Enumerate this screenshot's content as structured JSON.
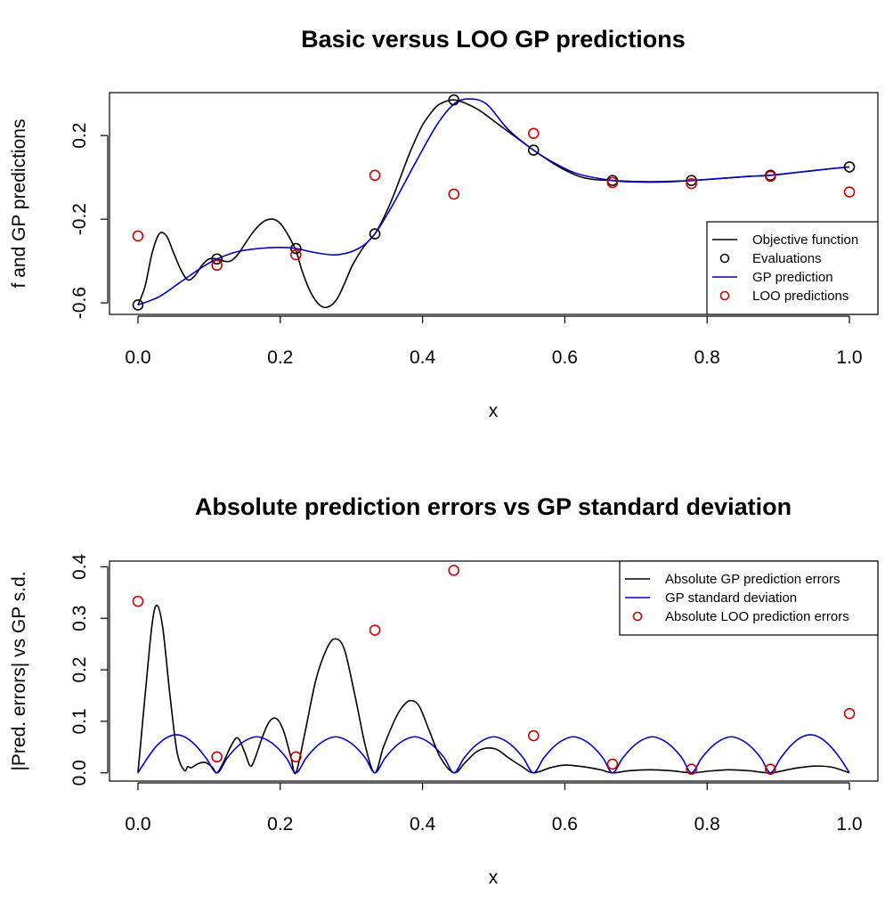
{
  "chart_data": [
    {
      "type": "line",
      "title": "Basic versus LOO GP predictions",
      "xlabel": "x",
      "ylabel": "f and GP predictions",
      "xlim": [
        -0.04,
        1.04
      ],
      "ylim": [
        -0.655,
        0.405
      ],
      "xticks": [
        0,
        0.2,
        0.4,
        0.6,
        0.8,
        1
      ],
      "xtick_labels": [
        "0.0",
        "0.2",
        "0.4",
        "0.6",
        "0.8",
        "1.0"
      ],
      "yticks": [
        -0.6,
        -0.2,
        0.2
      ],
      "ytick_labels": [
        "-0.6",
        "-0.2",
        "0.2"
      ],
      "grid": false,
      "legend_position": "bottom-right",
      "series": [
        {
          "name": "Objective function",
          "kind": "line",
          "color": "#000000",
          "x": [
            0,
            0.01,
            0.02,
            0.03,
            0.04,
            0.05,
            0.06,
            0.07,
            0.08,
            0.09,
            0.1,
            0.111,
            0.12,
            0.13,
            0.14,
            0.15,
            0.16,
            0.17,
            0.18,
            0.19,
            0.2,
            0.21,
            0.222,
            0.23,
            0.24,
            0.25,
            0.26,
            0.27,
            0.28,
            0.29,
            0.3,
            0.31,
            0.32,
            0.333,
            0.34,
            0.35,
            0.36,
            0.37,
            0.38,
            0.39,
            0.4,
            0.41,
            0.42,
            0.43,
            0.444,
            0.46,
            0.48,
            0.5,
            0.52,
            0.54,
            0.556,
            0.58,
            0.6,
            0.62,
            0.64,
            0.667,
            0.7,
            0.74,
            0.778,
            0.82,
            0.86,
            0.889,
            0.93,
            0.97,
            1.0
          ],
          "y": [
            -0.61,
            -0.52,
            -0.36,
            -0.27,
            -0.28,
            -0.36,
            -0.44,
            -0.49,
            -0.47,
            -0.42,
            -0.39,
            -0.39,
            -0.4,
            -0.4,
            -0.37,
            -0.32,
            -0.27,
            -0.23,
            -0.205,
            -0.2,
            -0.22,
            -0.27,
            -0.35,
            -0.44,
            -0.53,
            -0.59,
            -0.62,
            -0.615,
            -0.58,
            -0.51,
            -0.43,
            -0.37,
            -0.32,
            -0.27,
            -0.23,
            -0.16,
            -0.08,
            0.01,
            0.1,
            0.18,
            0.25,
            0.3,
            0.34,
            0.36,
            0.37,
            0.355,
            0.32,
            0.27,
            0.22,
            0.17,
            0.13,
            0.075,
            0.035,
            0.005,
            -0.01,
            -0.015,
            -0.02,
            -0.02,
            -0.015,
            -0.005,
            0.005,
            0.01,
            0.025,
            0.04,
            0.05
          ]
        },
        {
          "name": "Evaluations",
          "kind": "points",
          "color": "#000000",
          "x": [
            0,
            0.111,
            0.222,
            0.333,
            0.444,
            0.556,
            0.667,
            0.778,
            0.889,
            1.0
          ],
          "y": [
            -0.61,
            -0.39,
            -0.34,
            -0.27,
            0.37,
            0.13,
            -0.015,
            -0.015,
            0.01,
            0.05
          ]
        },
        {
          "name": "GP prediction",
          "kind": "line",
          "color": "#0000cc",
          "x": [
            0,
            0.03,
            0.06,
            0.09,
            0.111,
            0.14,
            0.17,
            0.2,
            0.222,
            0.25,
            0.28,
            0.31,
            0.333,
            0.36,
            0.39,
            0.42,
            0.444,
            0.465,
            0.49,
            0.52,
            0.556,
            0.59,
            0.62,
            0.667,
            0.7,
            0.74,
            0.778,
            0.82,
            0.86,
            0.889,
            0.93,
            0.97,
            1.0
          ],
          "y": [
            -0.61,
            -0.57,
            -0.5,
            -0.43,
            -0.39,
            -0.355,
            -0.34,
            -0.335,
            -0.34,
            -0.36,
            -0.37,
            -0.34,
            -0.27,
            -0.12,
            0.07,
            0.25,
            0.35,
            0.375,
            0.35,
            0.23,
            0.13,
            0.06,
            0.015,
            -0.015,
            -0.022,
            -0.022,
            -0.015,
            -0.005,
            0.005,
            0.01,
            0.025,
            0.04,
            0.05
          ]
        },
        {
          "name": "LOO predictions",
          "kind": "points",
          "color": "#cc0000",
          "x": [
            0,
            0.111,
            0.222,
            0.333,
            0.444,
            0.556,
            0.667,
            0.778,
            0.889,
            1.0
          ],
          "y": [
            -0.28,
            -0.42,
            -0.37,
            0.01,
            -0.08,
            0.21,
            -0.025,
            -0.03,
            0.005,
            -0.07
          ]
        }
      ]
    },
    {
      "type": "line",
      "title": "Absolute prediction errors vs GP standard deviation",
      "xlabel": "x",
      "ylabel": "|Pred. errors| vs GP s.d.",
      "xlim": [
        -0.04,
        1.04
      ],
      "ylim": [
        -0.016,
        0.411
      ],
      "xticks": [
        0,
        0.2,
        0.4,
        0.6,
        0.8,
        1
      ],
      "xtick_labels": [
        "0.0",
        "0.2",
        "0.4",
        "0.6",
        "0.8",
        "1.0"
      ],
      "yticks": [
        0,
        0.1,
        0.2,
        0.3,
        0.4
      ],
      "ytick_labels": [
        "0.0",
        "0.1",
        "0.2",
        "0.3",
        "0.4"
      ],
      "grid": false,
      "legend_position": "top-right",
      "series": [
        {
          "name": "Absolute GP prediction errors",
          "kind": "line",
          "color": "#000000",
          "x": [
            0,
            0.01,
            0.02,
            0.027,
            0.035,
            0.045,
            0.055,
            0.065,
            0.07,
            0.075,
            0.085,
            0.095,
            0.105,
            0.111,
            0.12,
            0.13,
            0.14,
            0.15,
            0.158,
            0.165,
            0.175,
            0.185,
            0.195,
            0.205,
            0.215,
            0.222,
            0.235,
            0.25,
            0.265,
            0.277,
            0.29,
            0.305,
            0.32,
            0.333,
            0.345,
            0.36,
            0.37,
            0.382,
            0.395,
            0.41,
            0.425,
            0.444,
            0.46,
            0.475,
            0.49,
            0.505,
            0.52,
            0.54,
            0.556,
            0.58,
            0.6,
            0.625,
            0.65,
            0.667,
            0.69,
            0.72,
            0.75,
            0.778,
            0.8,
            0.83,
            0.86,
            0.889,
            0.92,
            0.95,
            0.975,
            1.0
          ],
          "y": [
            0,
            0.15,
            0.29,
            0.325,
            0.28,
            0.15,
            0.04,
            0.005,
            0.012,
            0.01,
            0.018,
            0.02,
            0.01,
            0,
            0.02,
            0.05,
            0.068,
            0.04,
            0.013,
            0.03,
            0.07,
            0.1,
            0.105,
            0.08,
            0.03,
            0,
            0.08,
            0.18,
            0.24,
            0.26,
            0.24,
            0.15,
            0.05,
            0,
            0.05,
            0.1,
            0.125,
            0.14,
            0.13,
            0.08,
            0.03,
            0,
            0.02,
            0.04,
            0.048,
            0.045,
            0.03,
            0.012,
            0,
            0.01,
            0.015,
            0.012,
            0.006,
            0,
            0.004,
            0.006,
            0.004,
            0,
            0.003,
            0.006,
            0.004,
            0,
            0.008,
            0.013,
            0.011,
            0
          ]
        },
        {
          "name": "GP standard deviation",
          "kind": "line",
          "color": "#0000cc",
          "x": [
            0,
            0.013,
            0.026,
            0.04,
            0.054,
            0.068,
            0.082,
            0.096,
            0.111,
            0.125,
            0.139,
            0.153,
            0.167,
            0.181,
            0.195,
            0.209,
            0.222,
            0.236,
            0.25,
            0.264,
            0.278,
            0.292,
            0.306,
            0.32,
            0.333,
            0.347,
            0.361,
            0.375,
            0.389,
            0.403,
            0.417,
            0.431,
            0.444,
            0.458,
            0.472,
            0.486,
            0.5,
            0.514,
            0.528,
            0.542,
            0.556,
            0.57,
            0.584,
            0.598,
            0.612,
            0.626,
            0.64,
            0.654,
            0.667,
            0.681,
            0.695,
            0.709,
            0.723,
            0.737,
            0.751,
            0.765,
            0.778,
            0.792,
            0.806,
            0.82,
            0.834,
            0.848,
            0.862,
            0.876,
            0.889,
            0.903,
            0.917,
            0.931,
            0.945,
            0.959,
            0.973,
            0.987,
            1.0
          ],
          "y": [
            0,
            0.028,
            0.052,
            0.068,
            0.074,
            0.068,
            0.052,
            0.028,
            0,
            0.028,
            0.05,
            0.064,
            0.07,
            0.064,
            0.05,
            0.028,
            0,
            0.028,
            0.05,
            0.064,
            0.07,
            0.064,
            0.05,
            0.028,
            0,
            0.028,
            0.05,
            0.064,
            0.07,
            0.064,
            0.05,
            0.028,
            0,
            0.028,
            0.05,
            0.064,
            0.07,
            0.064,
            0.05,
            0.028,
            0,
            0.028,
            0.05,
            0.064,
            0.07,
            0.064,
            0.05,
            0.028,
            0,
            0.028,
            0.05,
            0.064,
            0.07,
            0.064,
            0.05,
            0.028,
            0,
            0.028,
            0.05,
            0.064,
            0.07,
            0.064,
            0.05,
            0.028,
            0,
            0.028,
            0.052,
            0.068,
            0.074,
            0.068,
            0.052,
            0.028,
            0
          ]
        },
        {
          "name": "Absolute LOO prediction errors",
          "kind": "points",
          "color": "#cc0000",
          "x": [
            0,
            0.111,
            0.222,
            0.333,
            0.444,
            0.556,
            0.667,
            0.778,
            0.889,
            1.0
          ],
          "y": [
            0.333,
            0.031,
            0.031,
            0.277,
            0.393,
            0.072,
            0.017,
            0.007,
            0.007,
            0.115
          ]
        }
      ]
    }
  ]
}
